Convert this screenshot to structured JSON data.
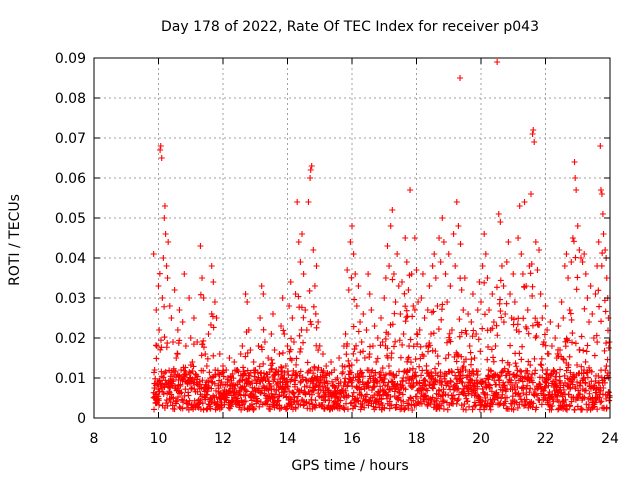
{
  "chart_data": {
    "type": "scatter",
    "title": "Day 178 of 2022, Rate Of TEC Index for receiver p043",
    "xlabel": "GPS time / hours",
    "ylabel": "ROTI / TECUs",
    "xlim": [
      8,
      24
    ],
    "ylim": [
      0,
      0.09
    ],
    "xticks": [
      8,
      10,
      12,
      14,
      16,
      18,
      20,
      22,
      24
    ],
    "xtick_labels": [
      "8",
      "10",
      "12",
      "14",
      "16",
      "18",
      "20",
      "22",
      "24"
    ],
    "yticks": [
      0,
      0.01,
      0.02,
      0.03,
      0.04,
      0.05,
      0.06,
      0.07,
      0.08,
      0.09
    ],
    "ytick_labels": [
      "0",
      "0.01",
      "0.02",
      "0.03",
      "0.04",
      "0.05",
      "0.06",
      "0.07",
      "0.08",
      "0.09"
    ],
    "grid": true,
    "marker": "+",
    "series_color": "#ff0000",
    "series": [
      {
        "name": "ROTI",
        "points": [
          [
            9.85,
            0.041
          ],
          [
            9.88,
            0.012
          ],
          [
            9.9,
            0.006
          ],
          [
            9.93,
            0.027
          ],
          [
            9.95,
            0.018
          ],
          [
            9.98,
            0.009
          ],
          [
            10.0,
            0.033
          ],
          [
            10.02,
            0.022
          ],
          [
            10.05,
            0.067
          ],
          [
            10.07,
            0.068
          ],
          [
            10.1,
            0.065
          ],
          [
            10.12,
            0.03
          ],
          [
            10.15,
            0.04
          ],
          [
            10.18,
            0.05
          ],
          [
            10.2,
            0.053
          ],
          [
            10.22,
            0.046
          ],
          [
            10.25,
            0.038
          ],
          [
            10.28,
            0.035
          ],
          [
            10.3,
            0.044
          ],
          [
            10.35,
            0.028
          ],
          [
            10.4,
            0.025
          ],
          [
            10.45,
            0.019
          ],
          [
            10.5,
            0.032
          ],
          [
            10.55,
            0.015
          ],
          [
            10.6,
            0.022
          ],
          [
            10.65,
            0.027
          ],
          [
            10.7,
            0.012
          ],
          [
            10.75,
            0.024
          ],
          [
            10.8,
            0.036
          ],
          [
            10.85,
            0.018
          ],
          [
            10.9,
            0.009
          ],
          [
            10.95,
            0.03
          ],
          [
            11.0,
            0.02
          ],
          [
            11.05,
            0.014
          ],
          [
            11.1,
            0.025
          ],
          [
            11.15,
            0.011
          ],
          [
            11.2,
            0.019
          ],
          [
            11.25,
            0.008
          ],
          [
            11.3,
            0.043
          ],
          [
            11.35,
            0.035
          ],
          [
            11.4,
            0.03
          ],
          [
            11.45,
            0.016
          ],
          [
            11.5,
            0.013
          ],
          [
            11.55,
            0.021
          ],
          [
            11.6,
            0.01
          ],
          [
            11.65,
            0.038
          ],
          [
            11.7,
            0.034
          ],
          [
            11.75,
            0.029
          ],
          [
            11.8,
            0.025
          ],
          [
            11.85,
            0.011
          ],
          [
            11.9,
            0.016
          ],
          [
            11.95,
            0.009
          ],
          [
            12.0,
            0.013
          ],
          [
            12.05,
            0.007
          ],
          [
            12.1,
            0.012
          ],
          [
            12.15,
            0.01
          ],
          [
            12.2,
            0.015
          ],
          [
            12.25,
            0.008
          ],
          [
            12.3,
            0.011
          ],
          [
            12.35,
            0.014
          ],
          [
            12.4,
            0.006
          ],
          [
            12.45,
            0.012
          ],
          [
            12.5,
            0.009
          ],
          [
            12.55,
            0.016
          ],
          [
            12.6,
            0.018
          ],
          [
            12.65,
            0.011
          ],
          [
            12.7,
            0.031
          ],
          [
            12.75,
            0.029
          ],
          [
            12.8,
            0.022
          ],
          [
            12.85,
            0.017
          ],
          [
            12.9,
            0.009
          ],
          [
            12.95,
            0.014
          ],
          [
            13.0,
            0.012
          ],
          [
            13.05,
            0.007
          ],
          [
            13.1,
            0.018
          ],
          [
            13.15,
            0.025
          ],
          [
            13.2,
            0.033
          ],
          [
            13.25,
            0.031
          ],
          [
            13.3,
            0.019
          ],
          [
            13.35,
            0.011
          ],
          [
            13.4,
            0.015
          ],
          [
            13.45,
            0.008
          ],
          [
            13.5,
            0.021
          ],
          [
            13.55,
            0.026
          ],
          [
            13.6,
            0.017
          ],
          [
            13.65,
            0.012
          ],
          [
            13.7,
            0.009
          ],
          [
            13.75,
            0.016
          ],
          [
            13.8,
            0.023
          ],
          [
            13.85,
            0.03
          ],
          [
            13.9,
            0.021
          ],
          [
            13.95,
            0.013
          ],
          [
            14.0,
            0.018
          ],
          [
            14.05,
            0.028
          ],
          [
            14.1,
            0.034
          ],
          [
            14.15,
            0.025
          ],
          [
            14.2,
            0.019
          ],
          [
            14.25,
            0.031
          ],
          [
            14.3,
            0.054
          ],
          [
            14.35,
            0.044
          ],
          [
            14.4,
            0.039
          ],
          [
            14.45,
            0.046
          ],
          [
            14.5,
            0.036
          ],
          [
            14.55,
            0.027
          ],
          [
            14.6,
            0.022
          ],
          [
            14.65,
            0.054
          ],
          [
            14.7,
            0.06
          ],
          [
            14.72,
            0.062
          ],
          [
            14.75,
            0.063
          ],
          [
            14.8,
            0.042
          ],
          [
            14.85,
            0.033
          ],
          [
            14.9,
            0.038
          ],
          [
            14.95,
            0.024
          ],
          [
            15.0,
            0.018
          ],
          [
            15.05,
            0.012
          ],
          [
            15.1,
            0.016
          ],
          [
            15.15,
            0.009
          ],
          [
            15.2,
            0.013
          ],
          [
            15.25,
            0.007
          ],
          [
            15.3,
            0.011
          ],
          [
            15.35,
            0.014
          ],
          [
            15.4,
            0.008
          ],
          [
            15.45,
            0.012
          ],
          [
            15.5,
            0.006
          ],
          [
            15.55,
            0.01
          ],
          [
            15.6,
            0.015
          ],
          [
            15.65,
            0.009
          ],
          [
            15.7,
            0.013
          ],
          [
            15.75,
            0.018
          ],
          [
            15.8,
            0.021
          ],
          [
            15.85,
            0.037
          ],
          [
            15.9,
            0.032
          ],
          [
            15.95,
            0.044
          ],
          [
            16.0,
            0.048
          ],
          [
            16.05,
            0.041
          ],
          [
            16.1,
            0.036
          ],
          [
            16.15,
            0.028
          ],
          [
            16.2,
            0.033
          ],
          [
            16.25,
            0.024
          ],
          [
            16.3,
            0.019
          ],
          [
            16.35,
            0.026
          ],
          [
            16.4,
            0.015
          ],
          [
            16.45,
            0.022
          ],
          [
            16.5,
            0.036
          ],
          [
            16.55,
            0.031
          ],
          [
            16.6,
            0.027
          ],
          [
            16.65,
            0.018
          ],
          [
            16.7,
            0.023
          ],
          [
            16.75,
            0.014
          ],
          [
            16.8,
            0.02
          ],
          [
            16.85,
            0.011
          ],
          [
            16.9,
            0.025
          ],
          [
            16.95,
            0.019
          ],
          [
            17.0,
            0.03
          ],
          [
            17.05,
            0.035
          ],
          [
            17.1,
            0.043
          ],
          [
            17.15,
            0.038
          ],
          [
            17.2,
            0.048
          ],
          [
            17.25,
            0.052
          ],
          [
            17.3,
            0.036
          ],
          [
            17.35,
            0.029
          ],
          [
            17.4,
            0.041
          ],
          [
            17.45,
            0.033
          ],
          [
            17.5,
            0.026
          ],
          [
            17.55,
            0.034
          ],
          [
            17.6,
            0.021
          ],
          [
            17.65,
            0.045
          ],
          [
            17.7,
            0.039
          ],
          [
            17.75,
            0.032
          ],
          [
            17.8,
            0.057
          ],
          [
            17.85,
            0.036
          ],
          [
            17.9,
            0.028
          ],
          [
            17.95,
            0.045
          ],
          [
            18.0,
            0.037
          ],
          [
            18.05,
            0.029
          ],
          [
            18.1,
            0.022
          ],
          [
            18.15,
            0.03
          ],
          [
            18.2,
            0.036
          ],
          [
            18.25,
            0.025
          ],
          [
            18.3,
            0.018
          ],
          [
            18.35,
            0.027
          ],
          [
            18.4,
            0.033
          ],
          [
            18.45,
            0.021
          ],
          [
            18.5,
            0.038
          ],
          [
            18.55,
            0.041
          ],
          [
            18.6,
            0.035
          ],
          [
            18.65,
            0.028
          ],
          [
            18.7,
            0.045
          ],
          [
            18.75,
            0.039
          ],
          [
            18.8,
            0.05
          ],
          [
            18.85,
            0.044
          ],
          [
            18.9,
            0.036
          ],
          [
            18.95,
            0.029
          ],
          [
            19.0,
            0.041
          ],
          [
            19.05,
            0.033
          ],
          [
            19.1,
            0.022
          ],
          [
            19.15,
            0.046
          ],
          [
            19.2,
            0.038
          ],
          [
            19.25,
            0.054
          ],
          [
            19.3,
            0.048
          ],
          [
            19.35,
            0.085
          ],
          [
            19.4,
            0.032
          ],
          [
            19.45,
            0.027
          ],
          [
            19.5,
            0.035
          ],
          [
            19.55,
            0.021
          ],
          [
            19.6,
            0.026
          ],
          [
            19.65,
            0.018
          ],
          [
            19.7,
            0.024
          ],
          [
            19.75,
            0.031
          ],
          [
            19.8,
            0.015
          ],
          [
            19.85,
            0.021
          ],
          [
            19.9,
            0.027
          ],
          [
            19.95,
            0.034
          ],
          [
            20.0,
            0.029
          ],
          [
            20.05,
            0.038
          ],
          [
            20.1,
            0.046
          ],
          [
            20.15,
            0.041
          ],
          [
            20.2,
            0.035
          ],
          [
            20.25,
            0.027
          ],
          [
            20.3,
            0.022
          ],
          [
            20.35,
            0.031
          ],
          [
            20.4,
            0.024
          ],
          [
            20.45,
            0.018
          ],
          [
            20.5,
            0.089
          ],
          [
            20.55,
            0.051
          ],
          [
            20.6,
            0.049
          ],
          [
            20.65,
            0.038
          ],
          [
            20.7,
            0.033
          ],
          [
            20.75,
            0.026
          ],
          [
            20.8,
            0.039
          ],
          [
            20.85,
            0.044
          ],
          [
            20.9,
            0.031
          ],
          [
            20.95,
            0.025
          ],
          [
            21.0,
            0.036
          ],
          [
            21.05,
            0.029
          ],
          [
            21.1,
            0.022
          ],
          [
            21.15,
            0.045
          ],
          [
            21.2,
            0.053
          ],
          [
            21.25,
            0.041
          ],
          [
            21.3,
            0.036
          ],
          [
            21.35,
            0.054
          ],
          [
            21.4,
            0.033
          ],
          [
            21.45,
            0.027
          ],
          [
            21.5,
            0.038
          ],
          [
            21.55,
            0.056
          ],
          [
            21.6,
            0.071
          ],
          [
            21.62,
            0.072
          ],
          [
            21.65,
            0.069
          ],
          [
            21.7,
            0.044
          ],
          [
            21.75,
            0.037
          ],
          [
            21.8,
            0.042
          ],
          [
            21.85,
            0.031
          ],
          [
            21.9,
            0.025
          ],
          [
            21.95,
            0.019
          ],
          [
            22.0,
            0.028
          ],
          [
            22.05,
            0.022
          ],
          [
            22.1,
            0.016
          ],
          [
            22.15,
            0.024
          ],
          [
            22.2,
            0.018
          ],
          [
            22.25,
            0.012
          ],
          [
            22.3,
            0.02
          ],
          [
            22.35,
            0.015
          ],
          [
            22.4,
            0.023
          ],
          [
            22.45,
            0.017
          ],
          [
            22.5,
            0.029
          ],
          [
            22.55,
            0.025
          ],
          [
            22.6,
            0.038
          ],
          [
            22.65,
            0.041
          ],
          [
            22.7,
            0.035
          ],
          [
            22.75,
            0.027
          ],
          [
            22.8,
            0.039
          ],
          [
            22.85,
            0.045
          ],
          [
            22.9,
            0.064
          ],
          [
            22.92,
            0.06
          ],
          [
            22.95,
            0.057
          ],
          [
            23.0,
            0.048
          ],
          [
            23.05,
            0.042
          ],
          [
            23.1,
            0.04
          ],
          [
            23.15,
            0.039
          ],
          [
            23.2,
            0.041
          ],
          [
            23.25,
            0.036
          ],
          [
            23.3,
            0.03
          ],
          [
            23.35,
            0.024
          ],
          [
            23.4,
            0.033
          ],
          [
            23.45,
            0.026
          ],
          [
            23.5,
            0.02
          ],
          [
            23.55,
            0.031
          ],
          [
            23.6,
            0.038
          ],
          [
            23.65,
            0.044
          ],
          [
            23.7,
            0.068
          ],
          [
            23.72,
            0.057
          ],
          [
            23.75,
            0.056
          ],
          [
            23.78,
            0.051
          ],
          [
            23.8,
            0.046
          ],
          [
            23.85,
            0.042
          ],
          [
            23.88,
            0.04
          ],
          [
            23.9,
            0.035
          ],
          [
            23.93,
            0.03
          ],
          [
            23.95,
            0.025
          ],
          [
            23.98,
            0.019
          ]
        ],
        "baseline_band_ytop": 0.012,
        "baseline_band_ybottom": 0.002
      }
    ]
  }
}
